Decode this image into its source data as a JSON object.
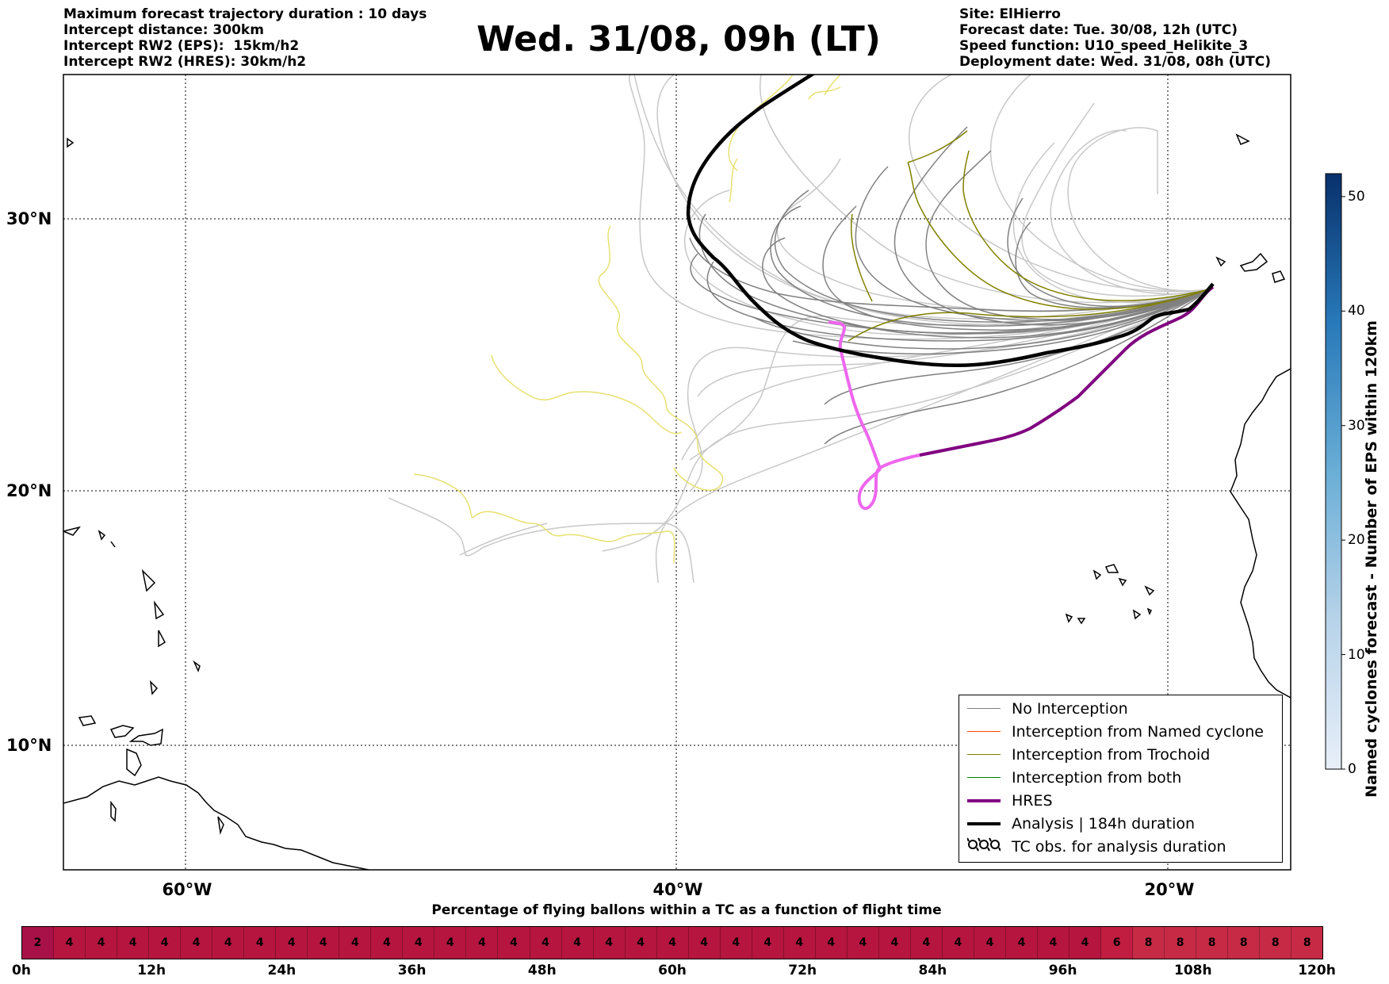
{
  "header_left": [
    "Maximum forecast trajectory duration : 10 days",
    "Intercept distance: 300km",
    "Intercept RW2 (EPS):  15km/h2",
    "Intercept RW2 (HRES): 30km/h2"
  ],
  "header_right": [
    "Site: ElHierro",
    "Forecast date: Tue. 30/08, 12h (UTC)",
    "Speed function: U10_speed_Helikite_3",
    "Deployment date: Wed. 31/08, 08h (UTC)"
  ],
  "title": "Wed. 31/08, 09h (LT)",
  "map": {
    "longitude_labels": [
      "60°W",
      "40°W",
      "20°W"
    ],
    "latitude_labels": [
      "30°N",
      "20°N",
      "10°N"
    ],
    "lon_range": [
      -65,
      -15
    ],
    "lat_range": [
      5,
      34.3
    ],
    "gridlines": "dotted"
  },
  "legend": {
    "items": [
      {
        "label": "No Interception",
        "color": "#808080",
        "kind": "line",
        "weight": "thin"
      },
      {
        "label": "Interception from Named cyclone",
        "color": "#ff4500",
        "kind": "line",
        "weight": "thin"
      },
      {
        "label": "Interception from Trochoid",
        "color": "#808000",
        "kind": "line",
        "weight": "thin"
      },
      {
        "label": "Interception from both",
        "color": "#008000",
        "kind": "line",
        "weight": "thin"
      },
      {
        "label": "HRES",
        "color": "#800080",
        "kind": "line",
        "weight": "thick"
      },
      {
        "label": "Analysis | 184h duration",
        "color": "#000000",
        "kind": "line",
        "weight": "thick"
      },
      {
        "label": "TC obs. for analysis duration",
        "color": "#000000",
        "kind": "glyph",
        "glyph": "➰➰➰"
      }
    ]
  },
  "colorbar": {
    "label": "Named cyclones forecast - Number of EPS within 120km",
    "ticks": [
      "0",
      "10",
      "20",
      "30",
      "40",
      "50"
    ],
    "range": [
      0,
      52
    ],
    "color_low": "#e8eff9",
    "color_high": "#08306b"
  },
  "bottom": {
    "caption": "Percentage of flying ballons within a TC as a function of flight time",
    "cells": [
      "2",
      "4",
      "4",
      "4",
      "4",
      "4",
      "4",
      "4",
      "4",
      "4",
      "4",
      "4",
      "4",
      "4",
      "4",
      "4",
      "4",
      "4",
      "4",
      "4",
      "4",
      "4",
      "4",
      "4",
      "4",
      "4",
      "4",
      "4",
      "4",
      "4",
      "4",
      "4",
      "4",
      "4",
      "6",
      "8",
      "8",
      "8",
      "8",
      "8",
      "8"
    ],
    "time_ticks": [
      "0h",
      "12h",
      "24h",
      "36h",
      "48h",
      "60h",
      "72h",
      "84h",
      "96h",
      "108h",
      "120h"
    ],
    "colors": {
      "2": "#a81148",
      "4": "#b5153f",
      "6": "#c01d40",
      "8": "#c62a45"
    }
  },
  "colors": {
    "eps_no_interception": "#808080",
    "eps_light": "#c8c8c8",
    "trochoid": "#808000",
    "yellow_tracks": "#e8e070",
    "hres": "#800080",
    "hres_light": "#ee66ee",
    "analysis": "#000000"
  }
}
